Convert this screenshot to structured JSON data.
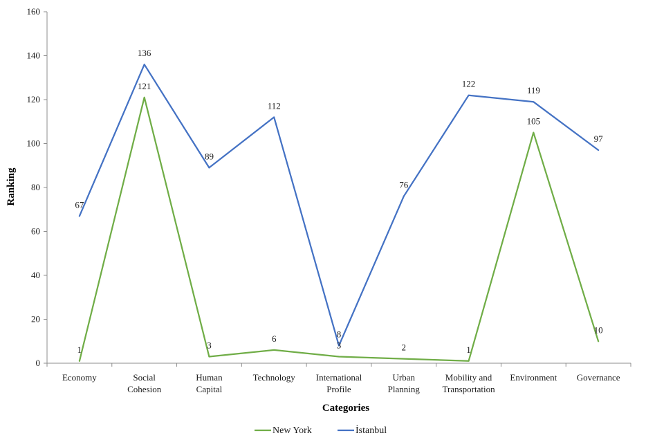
{
  "chart_data": {
    "type": "line",
    "title": "",
    "xlabel": "Categories",
    "ylabel": "Ranking",
    "ylim": [
      0,
      160
    ],
    "yticks": [
      0,
      20,
      40,
      60,
      80,
      100,
      120,
      140,
      160
    ],
    "grid": false,
    "legend": "bottom",
    "categories": [
      [
        "Economy"
      ],
      [
        "Social",
        "Cohesion"
      ],
      [
        "Human",
        "Capital"
      ],
      [
        "Technology"
      ],
      [
        "International",
        "Profile"
      ],
      [
        "Urban",
        "Planning"
      ],
      [
        "Mobility and",
        "Transportation"
      ],
      [
        "Environment"
      ],
      [
        "Governance"
      ]
    ],
    "series": [
      {
        "name": "New York",
        "color": "#70AD47",
        "values": [
          1,
          121,
          3,
          6,
          3,
          2,
          1,
          105,
          10
        ]
      },
      {
        "name": "İstanbul",
        "color": "#4472C4",
        "values": [
          67,
          136,
          89,
          112,
          8,
          76,
          122,
          119,
          97
        ]
      }
    ]
  }
}
